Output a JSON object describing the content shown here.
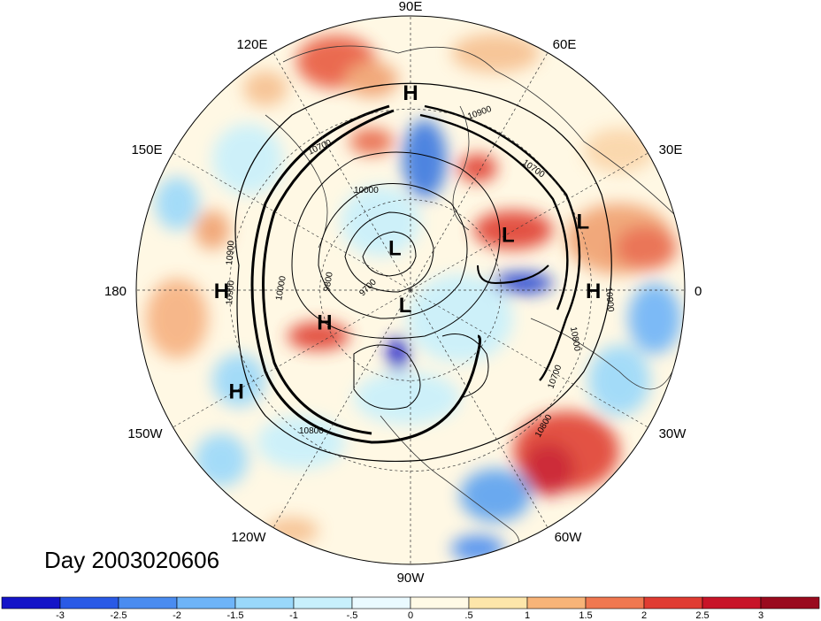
{
  "title": "Day 2003020606",
  "longitude_labels": [
    "90E",
    "60E",
    "30E",
    "0",
    "30W",
    "60W",
    "90W",
    "120W",
    "150W",
    "180",
    "150E",
    "120E"
  ],
  "pressure_centers": [
    {
      "type": "H",
      "lon": 90,
      "lat": 25
    },
    {
      "type": "H",
      "lon": 0,
      "lat": 30
    },
    {
      "type": "H",
      "lon": 180,
      "lat": 28
    },
    {
      "type": "H",
      "lon": -150,
      "lat": 24
    },
    {
      "type": "H",
      "lon": -160,
      "lat": 60
    },
    {
      "type": "L",
      "lon": 22,
      "lat": 29
    },
    {
      "type": "L",
      "lon": 30,
      "lat": 53
    },
    {
      "type": "L",
      "lon": 110,
      "lat": 75
    },
    {
      "type": "L",
      "lon": -110,
      "lat": 85
    }
  ],
  "contour_labels": [
    "10900",
    "10900",
    "10900",
    "10900",
    "10800",
    "10800",
    "10800",
    "10700",
    "10700",
    "10700",
    "10000",
    "10000",
    "9800",
    "9700"
  ],
  "colorbar": {
    "ticks": [
      "-3",
      "-2.5",
      "-2",
      "-1.5",
      "-1",
      "-.5",
      "0",
      ".5",
      "1",
      "1.5",
      "2",
      "2.5",
      "3"
    ],
    "colors": [
      "#1414c8",
      "#2a5ae6",
      "#4a8cf0",
      "#6eb4f8",
      "#9ad8fa",
      "#c8f0fc",
      "#eafaff",
      "#fffae6",
      "#fde6aa",
      "#f8b478",
      "#f07850",
      "#e03c32",
      "#c81428",
      "#9a0a1e"
    ]
  }
}
